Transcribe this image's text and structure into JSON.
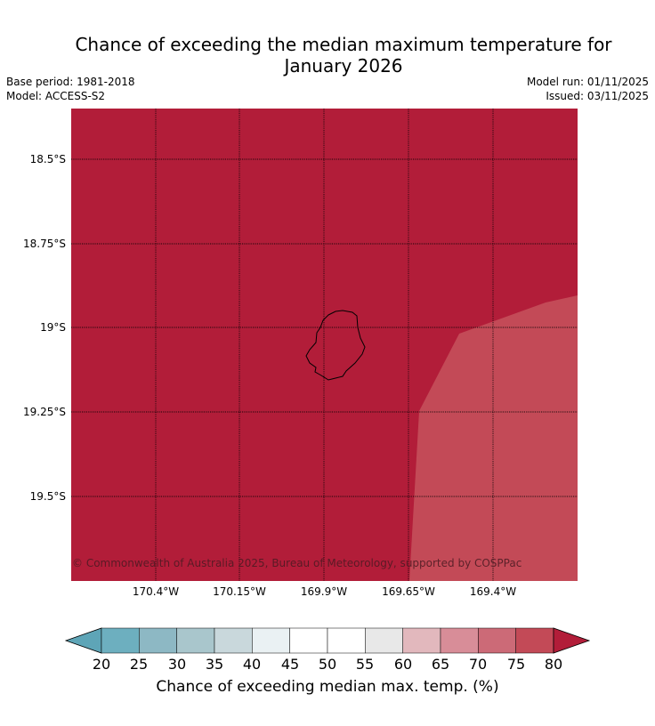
{
  "title_line1": "Chance of exceeding the median maximum temperature for",
  "title_line2": "January 2026",
  "meta": {
    "base_period": "Base period: 1981-2018",
    "model": "Model: ACCESS-S2",
    "model_run": "Model run: 01/11/2025",
    "issued": "Issued: 03/11/2025"
  },
  "map": {
    "lat_labels": [
      "18.5°S",
      "18.75°S",
      "19°S",
      "19.25°S",
      "19.5°S"
    ],
    "lon_labels": [
      "170.4°W",
      "170.15°W",
      "169.9°W",
      "169.65°W",
      "169.4°W"
    ],
    "colors": {
      "above_80": "#b21d39",
      "band_75_80": "#c34a57",
      "coast": "#000000"
    },
    "copyright": "© Commonwealth of Australia 2025, Bureau of Meteorology, supported by COSPPac"
  },
  "colorbar": {
    "ticks": [
      "20",
      "25",
      "30",
      "35",
      "40",
      "45",
      "50",
      "55",
      "60",
      "65",
      "70",
      "75",
      "80"
    ],
    "colors": [
      "#5ea5b7",
      "#6dafbf",
      "#8db8c4",
      "#a9c6cc",
      "#c9d8dc",
      "#eaf1f3",
      "#ffffff",
      "#ffffff",
      "#e8e8e8",
      "#e2b8bd",
      "#d88d98",
      "#cc6a77",
      "#c34a57",
      "#b21d39"
    ],
    "label": "Chance of exceeding median max. temp. (%)"
  }
}
